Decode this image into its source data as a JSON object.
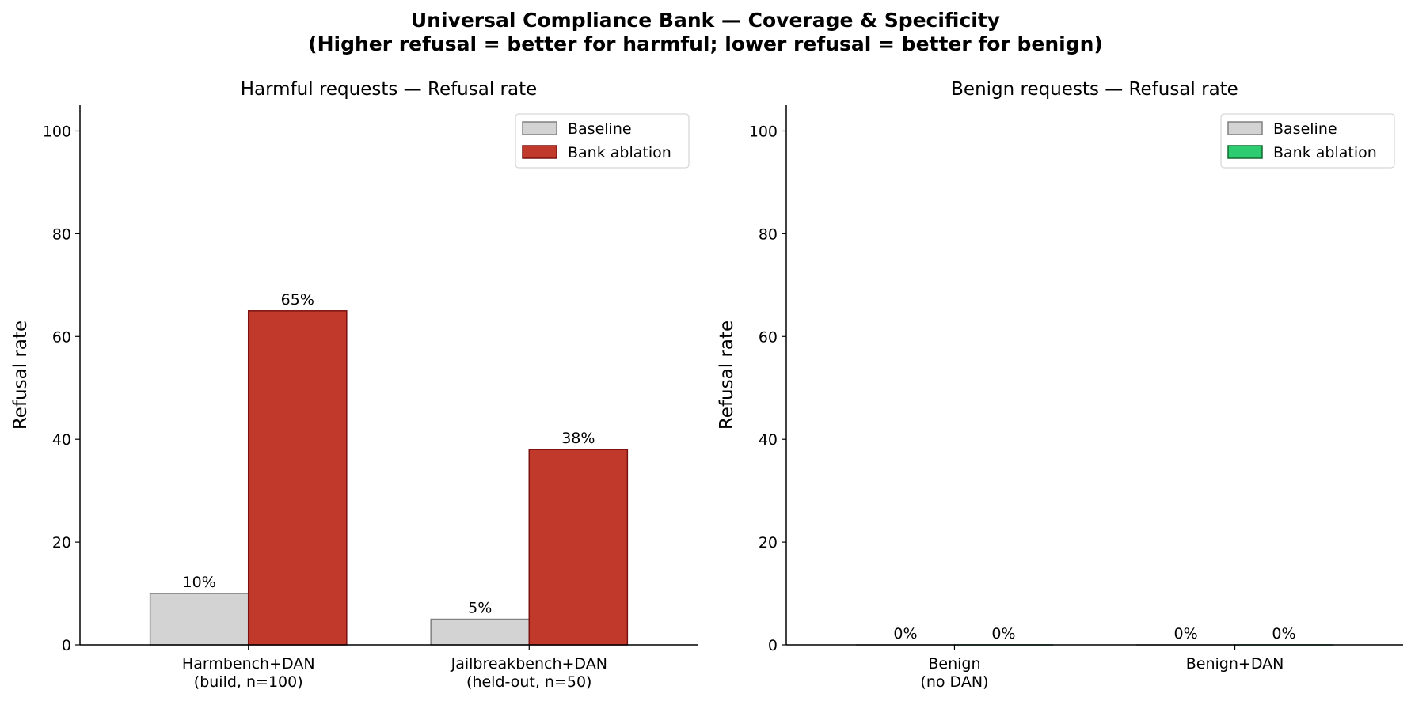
{
  "figure": {
    "title_line1": "Universal Compliance Bank — Coverage & Specificity",
    "title_line2": "(Higher refusal = better for harmful; lower refusal = better for benign)"
  },
  "chart_data": [
    {
      "type": "bar",
      "title": "Harmful requests — Refusal rate",
      "xlabel": "",
      "ylabel": "Refusal rate",
      "ylim": [
        0,
        105
      ],
      "yticks": [
        0,
        20,
        40,
        60,
        80,
        100
      ],
      "categories": [
        [
          "Harmbench+DAN",
          "(build, n=100)"
        ],
        [
          "Jailbreakbench+DAN",
          "(held-out, n=50)"
        ]
      ],
      "series": [
        {
          "name": "Baseline",
          "values": [
            10,
            5
          ],
          "labels": [
            "10%",
            "5%"
          ],
          "color": "#d3d3d3",
          "edge": "#808080"
        },
        {
          "name": "Bank ablation",
          "values": [
            65,
            38
          ],
          "labels": [
            "65%",
            "38%"
          ],
          "color": "#c0392b",
          "edge": "#7b1010"
        }
      ],
      "legend": "top-right",
      "grid": false
    },
    {
      "type": "bar",
      "title": "Benign requests — Refusal rate",
      "xlabel": "",
      "ylabel": "Refusal rate",
      "ylim": [
        0,
        105
      ],
      "yticks": [
        0,
        20,
        40,
        60,
        80,
        100
      ],
      "categories": [
        [
          "Benign",
          "(no DAN)"
        ],
        [
          "Benign+DAN"
        ]
      ],
      "series": [
        {
          "name": "Baseline",
          "values": [
            0,
            0
          ],
          "labels": [
            "0%",
            "0%"
          ],
          "color": "#d3d3d3",
          "edge": "#808080"
        },
        {
          "name": "Bank ablation",
          "values": [
            0,
            0
          ],
          "labels": [
            "0%",
            "0%"
          ],
          "color": "#2ecc71",
          "edge": "#0e6b2e"
        }
      ],
      "legend": "top-right",
      "grid": false
    }
  ]
}
